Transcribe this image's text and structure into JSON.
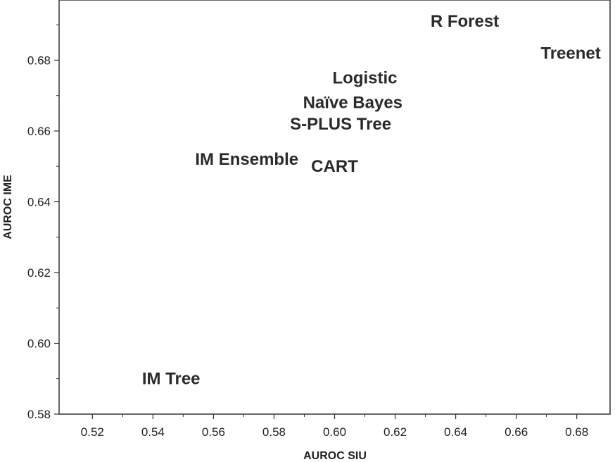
{
  "chart_data": {
    "type": "scatter",
    "title": "",
    "xlabel": "AUROC SIU",
    "ylabel": "AUROC IME",
    "xlim": [
      0.509,
      0.691
    ],
    "ylim": [
      0.58,
      0.697
    ],
    "xticks": [
      0.52,
      0.54,
      0.56,
      0.58,
      0.6,
      0.62,
      0.64,
      0.66,
      0.68
    ],
    "xtick_labels": [
      "0.52",
      "0.54",
      "0.56",
      "0.58",
      "0.60",
      "0.62",
      "0.64",
      "0.66",
      "0.68"
    ],
    "yticks": [
      0.58,
      0.6,
      0.62,
      0.64,
      0.66,
      0.68
    ],
    "ytick_labels": [
      "0.58",
      "0.60",
      "0.62",
      "0.64",
      "0.66",
      "0.68"
    ],
    "grid": false,
    "marker": "text-label",
    "points": [
      {
        "label": "R Forest",
        "x": 0.643,
        "y": 0.691
      },
      {
        "label": "Treenet",
        "x": 0.678,
        "y": 0.682
      },
      {
        "label": "Logistic",
        "x": 0.61,
        "y": 0.675
      },
      {
        "label": "Naïve Bayes",
        "x": 0.606,
        "y": 0.668
      },
      {
        "label": "S-PLUS Tree",
        "x": 0.602,
        "y": 0.662
      },
      {
        "label": "IM Ensemble",
        "x": 0.571,
        "y": 0.652
      },
      {
        "label": "CART",
        "x": 0.6,
        "y": 0.65
      },
      {
        "label": "IM Tree",
        "x": 0.546,
        "y": 0.59
      }
    ]
  }
}
